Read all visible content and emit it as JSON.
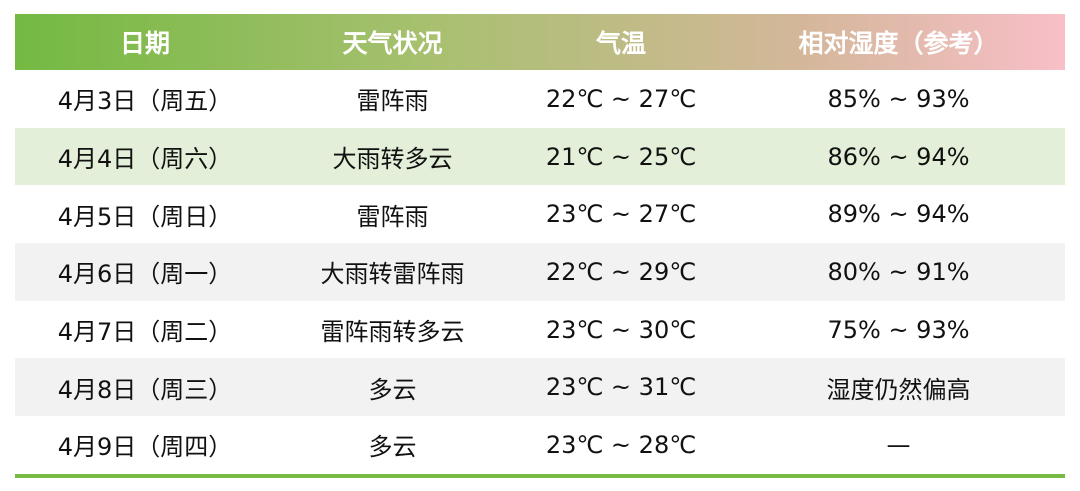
{
  "header": [
    "日期",
    "天气状况",
    "气温",
    "相对湿度（参考）"
  ],
  "rows": [
    [
      "4月3日（周五）",
      "雷阵雨",
      "22℃ ~ 27℃",
      "85% ~ 93%"
    ],
    [
      "4月4日（周六）",
      "大雨转多云",
      "21℃ ~ 25℃",
      "86% ~ 94%"
    ],
    [
      "4月5日（周日）",
      "雷阵雨",
      "23℃ ~ 27℃",
      "89% ~ 94%"
    ],
    [
      "4月6日（周一）",
      "大雨转雷阵雨",
      "22℃ ~ 29℃",
      "80% ~ 91%"
    ],
    [
      "4月7日（周二）",
      "雷阵雨转多云",
      "23℃ ~ 30℃",
      "75% ~ 93%"
    ],
    [
      "4月8日（周三）",
      "多云",
      "23℃ ~ 31℃",
      "湿度仍然偏高"
    ],
    [
      "4月9日（周四）",
      "多云",
      "23℃ ~ 28℃",
      "—"
    ]
  ],
  "colors": {
    "header_start": "#74b942",
    "header_end": "#f8bfc8",
    "highlight_row": "#e3efd8",
    "alt_row": "#f2f2f2",
    "bottom_rule": "#76b943"
  }
}
